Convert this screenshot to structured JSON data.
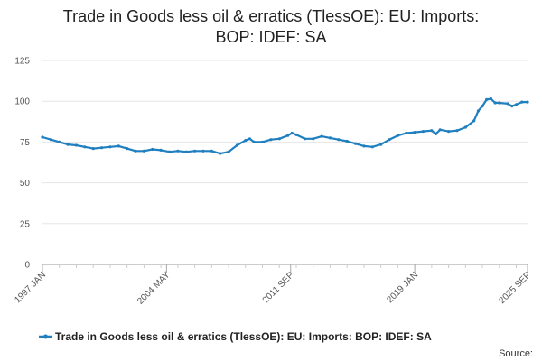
{
  "chart_data": {
    "type": "line",
    "title_lines": [
      "Trade in Goods less oil & erratics (TlessOE): EU: Imports:",
      "BOP: IDEF: SA"
    ],
    "xlabel": "",
    "ylabel": "",
    "ylim": [
      0,
      125
    ],
    "yticks": [
      "0",
      "25",
      "50",
      "75",
      "100",
      "125"
    ],
    "xlim": [
      "1997-01",
      "2025-09"
    ],
    "xticks": [
      {
        "label": "1997 JAN",
        "date": "1997-01"
      },
      {
        "label": "2004 MAY",
        "date": "2004-05"
      },
      {
        "label": "2011 SEP",
        "date": "2011-09"
      },
      {
        "label": "2019 JAN",
        "date": "2019-01"
      },
      {
        "label": "2025 SEP",
        "date": "2025-09"
      }
    ],
    "grid": true,
    "legend_position": "bottom",
    "source": "Source:",
    "series": [
      {
        "name": "Trade in Goods less oil & erratics (TlessOE): EU: Imports: BOP: IDEF: SA",
        "color": "#1f7fbf",
        "points": [
          [
            "1997-01",
            78
          ],
          [
            "1997-07",
            76.5
          ],
          [
            "1998-01",
            75
          ],
          [
            "1998-07",
            73.5
          ],
          [
            "1999-01",
            73
          ],
          [
            "1999-07",
            72
          ],
          [
            "2000-01",
            71
          ],
          [
            "2000-07",
            71.5
          ],
          [
            "2001-01",
            72
          ],
          [
            "2001-07",
            72.5
          ],
          [
            "2002-01",
            71
          ],
          [
            "2002-07",
            69.5
          ],
          [
            "2003-01",
            69.5
          ],
          [
            "2003-07",
            70.5
          ],
          [
            "2004-01",
            70
          ],
          [
            "2004-07",
            69
          ],
          [
            "2005-01",
            69.5
          ],
          [
            "2005-07",
            69
          ],
          [
            "2006-01",
            69.5
          ],
          [
            "2006-07",
            69.5
          ],
          [
            "2007-01",
            69.5
          ],
          [
            "2007-07",
            68
          ],
          [
            "2008-01",
            69
          ],
          [
            "2008-07",
            73
          ],
          [
            "2009-01",
            76
          ],
          [
            "2009-04",
            77
          ],
          [
            "2009-07",
            75
          ],
          [
            "2010-01",
            75
          ],
          [
            "2010-07",
            76.5
          ],
          [
            "2011-01",
            77
          ],
          [
            "2011-07",
            79
          ],
          [
            "2011-10",
            80.5
          ],
          [
            "2012-01",
            79.5
          ],
          [
            "2012-07",
            77
          ],
          [
            "2013-01",
            77
          ],
          [
            "2013-07",
            78.5
          ],
          [
            "2014-01",
            77.5
          ],
          [
            "2014-07",
            76.5
          ],
          [
            "2015-01",
            75.5
          ],
          [
            "2015-07",
            74
          ],
          [
            "2016-01",
            72.5
          ],
          [
            "2016-07",
            72
          ],
          [
            "2017-01",
            73.5
          ],
          [
            "2017-07",
            76.5
          ],
          [
            "2018-01",
            79
          ],
          [
            "2018-07",
            80.5
          ],
          [
            "2019-01",
            81
          ],
          [
            "2019-07",
            81.5
          ],
          [
            "2020-01",
            82
          ],
          [
            "2020-04",
            80
          ],
          [
            "2020-07",
            82.5
          ],
          [
            "2021-01",
            81.5
          ],
          [
            "2021-07",
            82
          ],
          [
            "2022-01",
            84
          ],
          [
            "2022-07",
            88
          ],
          [
            "2022-10",
            94
          ],
          [
            "2023-01",
            97
          ],
          [
            "2023-04",
            101
          ],
          [
            "2023-07",
            101.5
          ],
          [
            "2023-10",
            99
          ],
          [
            "2024-01",
            99
          ],
          [
            "2024-07",
            98.5
          ],
          [
            "2024-10",
            97
          ],
          [
            "2025-01",
            98
          ],
          [
            "2025-05",
            99.5
          ],
          [
            "2025-09",
            99.5
          ]
        ]
      }
    ]
  }
}
